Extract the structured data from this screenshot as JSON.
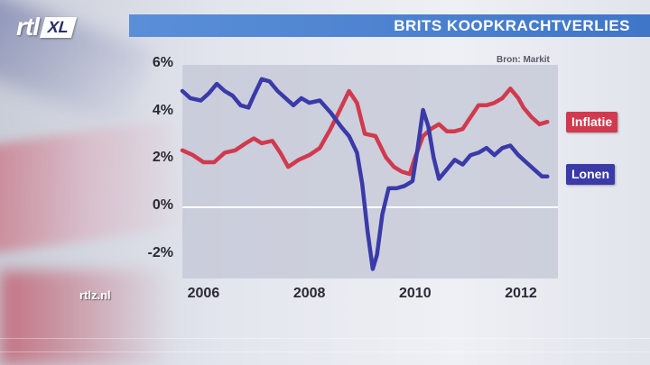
{
  "header": {
    "logo_text": "rtl",
    "logo_badge": "XL",
    "title": "BRITS KOOPKRACHTVERLIES"
  },
  "footer": {
    "site_url": "rtlz.nl"
  },
  "chart_data": {
    "type": "line",
    "title": "BRITS KOOPKRACHTVERLIES",
    "source": "Bron: Markit",
    "xlabel": "",
    "ylabel": "",
    "ylim": [
      -3,
      6
    ],
    "xlim": [
      2005.6,
      2012.7
    ],
    "grid": false,
    "legend_placement": "right-inline",
    "y_ticks": [
      "6%",
      "4%",
      "2%",
      "0%",
      "-2%"
    ],
    "y_tick_values": [
      6,
      4,
      2,
      0,
      -2
    ],
    "x_ticks": [
      "2006",
      "2008",
      "2010",
      "2012"
    ],
    "x_tick_values": [
      2006,
      2008,
      2010,
      2012
    ],
    "series": [
      {
        "name": "Inflatie",
        "color": "#d13a4e",
        "x": [
          2005.6,
          2005.8,
          2006.0,
          2006.2,
          2006.4,
          2006.6,
          2006.8,
          2006.95,
          2007.1,
          2007.3,
          2007.45,
          2007.6,
          2007.8,
          2008.0,
          2008.2,
          2008.4,
          2008.6,
          2008.75,
          2008.9,
          2009.05,
          2009.25,
          2009.45,
          2009.6,
          2009.75,
          2009.9,
          2010.0,
          2010.15,
          2010.3,
          2010.45,
          2010.6,
          2010.75,
          2010.9,
          2011.05,
          2011.2,
          2011.35,
          2011.5,
          2011.65,
          2011.8,
          2011.95,
          2012.05,
          2012.2,
          2012.35,
          2012.5
        ],
        "values": [
          2.4,
          2.2,
          1.9,
          1.9,
          2.3,
          2.4,
          2.7,
          2.9,
          2.7,
          2.8,
          2.3,
          1.7,
          2.0,
          2.2,
          2.5,
          3.3,
          4.2,
          4.9,
          4.4,
          3.1,
          3.0,
          2.1,
          1.7,
          1.5,
          1.4,
          2.1,
          3.0,
          3.3,
          3.5,
          3.2,
          3.2,
          3.3,
          3.8,
          4.3,
          4.3,
          4.4,
          4.6,
          5.0,
          4.6,
          4.2,
          3.8,
          3.5,
          3.6
        ]
      },
      {
        "name": "Lonen",
        "color": "#3a3aa8",
        "x": [
          2005.6,
          2005.75,
          2005.95,
          2006.1,
          2006.25,
          2006.4,
          2006.55,
          2006.7,
          2006.85,
          2006.95,
          2007.1,
          2007.25,
          2007.4,
          2007.55,
          2007.7,
          2007.85,
          2008.0,
          2008.2,
          2008.4,
          2008.6,
          2008.75,
          2008.9,
          2009.0,
          2009.1,
          2009.2,
          2009.28,
          2009.38,
          2009.5,
          2009.65,
          2009.8,
          2009.95,
          2010.05,
          2010.15,
          2010.25,
          2010.35,
          2010.45,
          2010.6,
          2010.75,
          2010.9,
          2011.05,
          2011.2,
          2011.35,
          2011.5,
          2011.65,
          2011.8,
          2011.95,
          2012.1,
          2012.25,
          2012.4,
          2012.5
        ],
        "values": [
          4.9,
          4.6,
          4.5,
          4.8,
          5.2,
          4.9,
          4.7,
          4.3,
          4.2,
          4.7,
          5.4,
          5.3,
          4.9,
          4.6,
          4.3,
          4.6,
          4.4,
          4.5,
          4.0,
          3.4,
          3.0,
          2.3,
          1.0,
          -1.0,
          -2.6,
          -2.0,
          -0.3,
          0.8,
          0.8,
          0.9,
          1.1,
          2.5,
          4.1,
          3.4,
          2.1,
          1.2,
          1.6,
          2.0,
          1.8,
          2.2,
          2.3,
          2.5,
          2.2,
          2.5,
          2.6,
          2.2,
          1.9,
          1.6,
          1.3,
          1.3
        ]
      }
    ]
  }
}
